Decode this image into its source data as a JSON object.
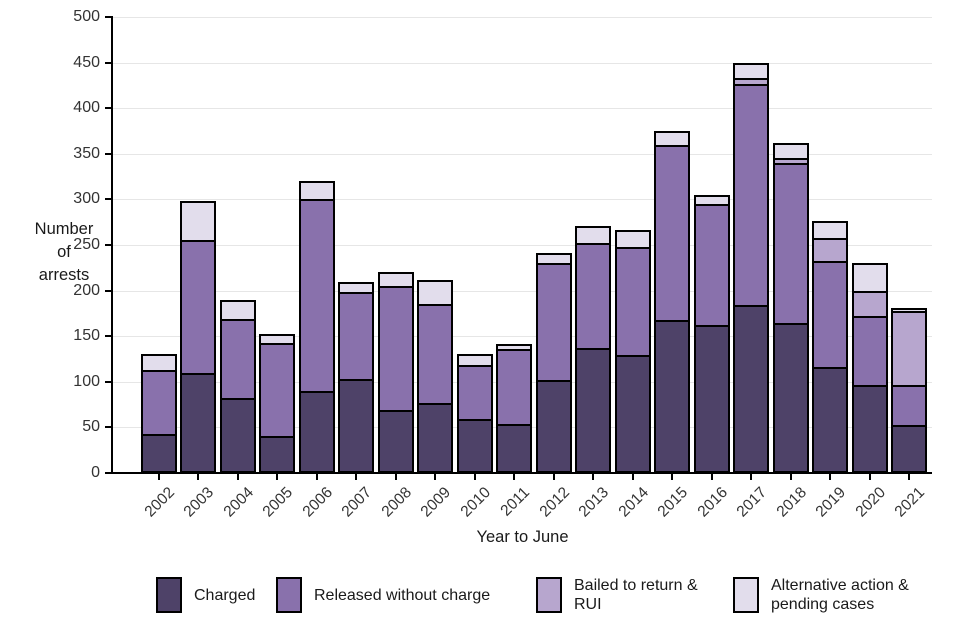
{
  "chart_data": {
    "type": "bar",
    "stacked": true,
    "title": "",
    "xlabel": "Year to June",
    "ylabel": "Number of arrests",
    "ylabel_lines": [
      "Number",
      "of",
      "arrests"
    ],
    "ylim": [
      0,
      500
    ],
    "ytick_interval": 50,
    "ytick_labels": [
      "0",
      "50",
      "100",
      "150",
      "200",
      "250",
      "300",
      "350",
      "400",
      "450",
      "500"
    ],
    "grid": "horizontal",
    "gridline_color": "#e6e6e6",
    "bar_outline_color": "#000000",
    "legend_position": "bottom",
    "categories": [
      "2002",
      "2003",
      "2004",
      "2005",
      "2006",
      "2007",
      "2008",
      "2009",
      "2010",
      "2011",
      "2012",
      "2013",
      "2014",
      "2015",
      "2016",
      "2017",
      "2018",
      "2019",
      "2020",
      "2021"
    ],
    "series": [
      {
        "name": "Charged",
        "label_lines": [
          "Charged"
        ],
        "color": "#4e4268",
        "values": [
          43,
          110,
          82,
          41,
          90,
          103,
          69,
          77,
          59,
          54,
          102,
          137,
          129,
          168,
          162,
          184,
          164,
          116,
          96,
          53
        ]
      },
      {
        "name": "Released without charge",
        "label_lines": [
          "Released without charge"
        ],
        "color": "#8971ac",
        "values": [
          70,
          145,
          87,
          102,
          211,
          95,
          136,
          108,
          59,
          82,
          128,
          115,
          119,
          192,
          133,
          243,
          176,
          116,
          76,
          44
        ]
      },
      {
        "name": "Bailed to return & RUI",
        "label_lines": [
          "Bailed to return &",
          "RUI"
        ],
        "color": "#b7a6ce",
        "values": [
          0,
          0,
          0,
          0,
          0,
          0,
          0,
          0,
          0,
          0,
          0,
          0,
          0,
          0,
          0,
          6,
          5,
          26,
          28,
          81
        ]
      },
      {
        "name": "Alternative action & pending cases",
        "label_lines": [
          "Alternative action &",
          "pending cases"
        ],
        "color": "#e2ddec",
        "values": [
          17,
          43,
          21,
          9,
          19,
          11,
          15,
          27,
          12,
          5,
          11,
          19,
          18,
          15,
          10,
          17,
          17,
          18,
          30,
          3
        ]
      }
    ],
    "totals": [
      130,
      298,
      190,
      152,
      320,
      209,
      220,
      212,
      130,
      141,
      241,
      271,
      266,
      375,
      305,
      450,
      362,
      276,
      230,
      181
    ]
  },
  "legend_x_positions": [
    156,
    276,
    536,
    733
  ]
}
